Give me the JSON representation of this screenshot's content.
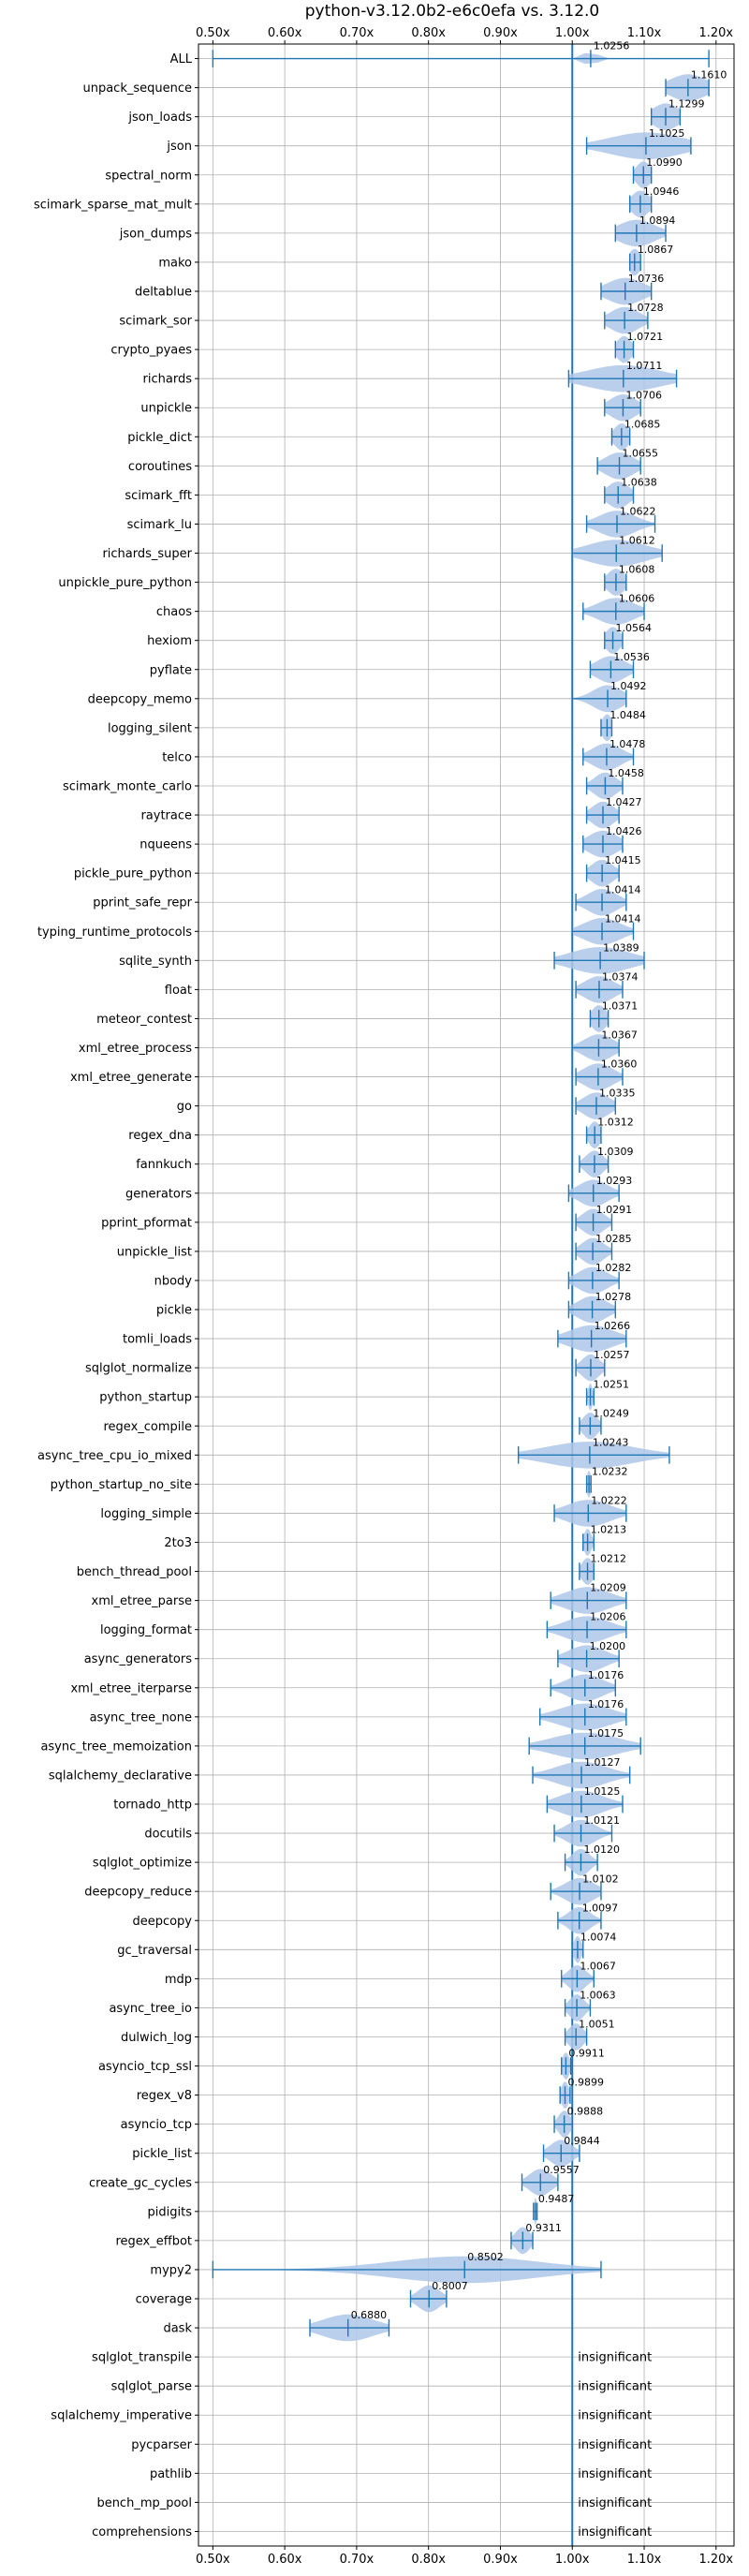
{
  "chart_data": {
    "type": "violin",
    "title": "python-v3.12.0b2-e6c0efa vs. 3.12.0",
    "x_ticks": [
      "0.50x",
      "0.60x",
      "0.70x",
      "0.80x",
      "0.90x",
      "1.00x",
      "1.10x",
      "1.20x"
    ],
    "xlim": [
      0.48,
      1.225
    ],
    "reference_line": 1.0,
    "grid": true,
    "colors": {
      "line": "#1f77b4",
      "fill": "#aec7e8"
    },
    "insignificant_label": "insignificant",
    "benchmarks": [
      {
        "name": "ALL",
        "value": 1.0256,
        "label": "1.0256",
        "low": 0.5,
        "high": 1.19,
        "spread": 0.006
      },
      {
        "name": "unpack_sequence",
        "value": 1.161,
        "label": "1.1610",
        "low": 1.13,
        "high": 1.19,
        "spread": 0.025
      },
      {
        "name": "json_loads",
        "value": 1.1299,
        "label": "1.1299",
        "low": 1.11,
        "high": 1.15,
        "spread": 0.018
      },
      {
        "name": "json",
        "value": 1.1025,
        "label": "1.1025",
        "low": 1.02,
        "high": 1.165,
        "spread": 0.05
      },
      {
        "name": "spectral_norm",
        "value": 1.099,
        "label": "1.0990",
        "low": 1.085,
        "high": 1.11,
        "spread": 0.01
      },
      {
        "name": "scimark_sparse_mat_mult",
        "value": 1.0946,
        "label": "1.0946",
        "low": 1.08,
        "high": 1.11,
        "spread": 0.012
      },
      {
        "name": "json_dumps",
        "value": 1.0894,
        "label": "1.0894",
        "low": 1.06,
        "high": 1.13,
        "spread": 0.025
      },
      {
        "name": "mako",
        "value": 1.0867,
        "label": "1.0867",
        "low": 1.08,
        "high": 1.095,
        "spread": 0.008
      },
      {
        "name": "deltablue",
        "value": 1.0736,
        "label": "1.0736",
        "low": 1.04,
        "high": 1.11,
        "spread": 0.025
      },
      {
        "name": "scimark_sor",
        "value": 1.0728,
        "label": "1.0728",
        "low": 1.045,
        "high": 1.105,
        "spread": 0.02
      },
      {
        "name": "crypto_pyaes",
        "value": 1.0721,
        "label": "1.0721",
        "low": 1.06,
        "high": 1.085,
        "spread": 0.01
      },
      {
        "name": "richards",
        "value": 1.0711,
        "label": "1.0711",
        "low": 0.995,
        "high": 1.145,
        "spread": 0.05
      },
      {
        "name": "unpickle",
        "value": 1.0706,
        "label": "1.0706",
        "low": 1.045,
        "high": 1.095,
        "spread": 0.018
      },
      {
        "name": "pickle_dict",
        "value": 1.0685,
        "label": "1.0685",
        "low": 1.055,
        "high": 1.08,
        "spread": 0.01
      },
      {
        "name": "coroutines",
        "value": 1.0655,
        "label": "1.0655",
        "low": 1.035,
        "high": 1.095,
        "spread": 0.02
      },
      {
        "name": "scimark_fft",
        "value": 1.0638,
        "label": "1.0638",
        "low": 1.045,
        "high": 1.085,
        "spread": 0.015
      },
      {
        "name": "scimark_lu",
        "value": 1.0622,
        "label": "1.0622",
        "low": 1.02,
        "high": 1.115,
        "spread": 0.025
      },
      {
        "name": "richards_super",
        "value": 1.0612,
        "label": "1.0612",
        "low": 1.0,
        "high": 1.125,
        "spread": 0.04
      },
      {
        "name": "unpickle_pure_python",
        "value": 1.0608,
        "label": "1.0608",
        "low": 1.045,
        "high": 1.075,
        "spread": 0.012
      },
      {
        "name": "chaos",
        "value": 1.0606,
        "label": "1.0606",
        "low": 1.015,
        "high": 1.1,
        "spread": 0.025
      },
      {
        "name": "hexiom",
        "value": 1.0564,
        "label": "1.0564",
        "low": 1.045,
        "high": 1.07,
        "spread": 0.01
      },
      {
        "name": "pyflate",
        "value": 1.0536,
        "label": "1.0536",
        "low": 1.025,
        "high": 1.085,
        "spread": 0.02
      },
      {
        "name": "deepcopy_memo",
        "value": 1.0492,
        "label": "1.0492",
        "low": 1.0,
        "high": 1.075,
        "spread": 0.02
      },
      {
        "name": "logging_silent",
        "value": 1.0484,
        "label": "1.0484",
        "low": 1.04,
        "high": 1.055,
        "spread": 0.007
      },
      {
        "name": "telco",
        "value": 1.0478,
        "label": "1.0478",
        "low": 1.015,
        "high": 1.085,
        "spread": 0.02
      },
      {
        "name": "scimark_monte_carlo",
        "value": 1.0458,
        "label": "1.0458",
        "low": 1.02,
        "high": 1.07,
        "spread": 0.015
      },
      {
        "name": "raytrace",
        "value": 1.0427,
        "label": "1.0427",
        "low": 1.02,
        "high": 1.065,
        "spread": 0.015
      },
      {
        "name": "nqueens",
        "value": 1.0426,
        "label": "1.0426",
        "low": 1.015,
        "high": 1.07,
        "spread": 0.02
      },
      {
        "name": "pickle_pure_python",
        "value": 1.0415,
        "label": "1.0415",
        "low": 1.02,
        "high": 1.065,
        "spread": 0.015
      },
      {
        "name": "pprint_safe_repr",
        "value": 1.0414,
        "label": "1.0414",
        "low": 1.005,
        "high": 1.075,
        "spread": 0.02
      },
      {
        "name": "typing_runtime_protocols",
        "value": 1.0414,
        "label": "1.0414",
        "low": 1.0,
        "high": 1.085,
        "spread": 0.025
      },
      {
        "name": "sqlite_synth",
        "value": 1.0389,
        "label": "1.0389",
        "low": 0.975,
        "high": 1.1,
        "spread": 0.04
      },
      {
        "name": "float",
        "value": 1.0374,
        "label": "1.0374",
        "low": 1.005,
        "high": 1.07,
        "spread": 0.02
      },
      {
        "name": "meteor_contest",
        "value": 1.0371,
        "label": "1.0371",
        "low": 1.025,
        "high": 1.05,
        "spread": 0.01
      },
      {
        "name": "xml_etree_process",
        "value": 1.0367,
        "label": "1.0367",
        "low": 1.0,
        "high": 1.065,
        "spread": 0.02
      },
      {
        "name": "xml_etree_generate",
        "value": 1.036,
        "label": "1.0360",
        "low": 1.005,
        "high": 1.07,
        "spread": 0.02
      },
      {
        "name": "go",
        "value": 1.0335,
        "label": "1.0335",
        "low": 1.005,
        "high": 1.06,
        "spread": 0.018
      },
      {
        "name": "regex_dna",
        "value": 1.0312,
        "label": "1.0312",
        "low": 1.02,
        "high": 1.04,
        "spread": 0.008
      },
      {
        "name": "fannkuch",
        "value": 1.0309,
        "label": "1.0309",
        "low": 1.01,
        "high": 1.05,
        "spread": 0.012
      },
      {
        "name": "generators",
        "value": 1.0293,
        "label": "1.0293",
        "low": 0.995,
        "high": 1.065,
        "spread": 0.02
      },
      {
        "name": "pprint_pformat",
        "value": 1.0291,
        "label": "1.0291",
        "low": 1.005,
        "high": 1.055,
        "spread": 0.015
      },
      {
        "name": "unpickle_list",
        "value": 1.0285,
        "label": "1.0285",
        "low": 1.005,
        "high": 1.055,
        "spread": 0.015
      },
      {
        "name": "nbody",
        "value": 1.0282,
        "label": "1.0282",
        "low": 0.995,
        "high": 1.065,
        "spread": 0.02
      },
      {
        "name": "pickle",
        "value": 1.0278,
        "label": "1.0278",
        "low": 0.995,
        "high": 1.06,
        "spread": 0.02
      },
      {
        "name": "tomli_loads",
        "value": 1.0266,
        "label": "1.0266",
        "low": 0.98,
        "high": 1.075,
        "spread": 0.03
      },
      {
        "name": "sqlglot_normalize",
        "value": 1.0257,
        "label": "1.0257",
        "low": 1.005,
        "high": 1.045,
        "spread": 0.012
      },
      {
        "name": "python_startup",
        "value": 1.0251,
        "label": "1.0251",
        "low": 1.02,
        "high": 1.03,
        "spread": 0.003
      },
      {
        "name": "regex_compile",
        "value": 1.0249,
        "label": "1.0249",
        "low": 1.01,
        "high": 1.04,
        "spread": 0.01
      },
      {
        "name": "async_tree_cpu_io_mixed",
        "value": 1.0243,
        "label": "1.0243",
        "low": 0.925,
        "high": 1.135,
        "spread": 0.06
      },
      {
        "name": "python_startup_no_site",
        "value": 1.0232,
        "label": "1.0232",
        "low": 1.02,
        "high": 1.026,
        "spread": 0.003
      },
      {
        "name": "logging_simple",
        "value": 1.0222,
        "label": "1.0222",
        "low": 0.975,
        "high": 1.075,
        "spread": 0.03
      },
      {
        "name": "2to3",
        "value": 1.0213,
        "label": "1.0213",
        "low": 1.015,
        "high": 1.03,
        "spread": 0.005
      },
      {
        "name": "bench_thread_pool",
        "value": 1.0212,
        "label": "1.0212",
        "low": 1.01,
        "high": 1.03,
        "spread": 0.008
      },
      {
        "name": "xml_etree_parse",
        "value": 1.0209,
        "label": "1.0209",
        "low": 0.97,
        "high": 1.075,
        "spread": 0.03
      },
      {
        "name": "logging_format",
        "value": 1.0206,
        "label": "1.0206",
        "low": 0.965,
        "high": 1.075,
        "spread": 0.03
      },
      {
        "name": "async_generators",
        "value": 1.02,
        "label": "1.0200",
        "low": 0.98,
        "high": 1.065,
        "spread": 0.025
      },
      {
        "name": "xml_etree_iterparse",
        "value": 1.0176,
        "label": "1.0176",
        "low": 0.97,
        "high": 1.06,
        "spread": 0.025
      },
      {
        "name": "async_tree_none",
        "value": 1.0176,
        "label": "1.0176",
        "low": 0.955,
        "high": 1.075,
        "spread": 0.035
      },
      {
        "name": "async_tree_memoization",
        "value": 1.0175,
        "label": "1.0175",
        "low": 0.94,
        "high": 1.095,
        "spread": 0.045
      },
      {
        "name": "sqlalchemy_declarative",
        "value": 1.0127,
        "label": "1.0127",
        "low": 0.945,
        "high": 1.08,
        "spread": 0.035
      },
      {
        "name": "tornado_http",
        "value": 1.0125,
        "label": "1.0125",
        "low": 0.965,
        "high": 1.07,
        "spread": 0.03
      },
      {
        "name": "docutils",
        "value": 1.0121,
        "label": "1.0121",
        "low": 0.975,
        "high": 1.055,
        "spread": 0.02
      },
      {
        "name": "sqlglot_optimize",
        "value": 1.012,
        "label": "1.0120",
        "low": 0.99,
        "high": 1.035,
        "spread": 0.012
      },
      {
        "name": "deepcopy_reduce",
        "value": 1.0102,
        "label": "1.0102",
        "low": 0.97,
        "high": 1.04,
        "spread": 0.02
      },
      {
        "name": "deepcopy",
        "value": 1.0097,
        "label": "1.0097",
        "low": 0.98,
        "high": 1.04,
        "spread": 0.015
      },
      {
        "name": "gc_traversal",
        "value": 1.0074,
        "label": "1.0074",
        "low": 1.0,
        "high": 1.015,
        "spread": 0.005
      },
      {
        "name": "mdp",
        "value": 1.0067,
        "label": "1.0067",
        "low": 0.985,
        "high": 1.03,
        "spread": 0.012
      },
      {
        "name": "async_tree_io",
        "value": 1.0063,
        "label": "1.0063",
        "low": 0.99,
        "high": 1.025,
        "spread": 0.01
      },
      {
        "name": "dulwich_log",
        "value": 1.0051,
        "label": "1.0051",
        "low": 0.99,
        "high": 1.02,
        "spread": 0.01
      },
      {
        "name": "asyncio_tcp_ssl",
        "value": 0.9911,
        "label": "0.9911",
        "low": 0.985,
        "high": 0.998,
        "spread": 0.005
      },
      {
        "name": "regex_v8",
        "value": 0.9899,
        "label": "0.9899",
        "low": 0.983,
        "high": 0.997,
        "spread": 0.005
      },
      {
        "name": "asyncio_tcp",
        "value": 0.9888,
        "label": "0.9888",
        "low": 0.975,
        "high": 1.0,
        "spread": 0.008
      },
      {
        "name": "pickle_list",
        "value": 0.9844,
        "label": "0.9844",
        "low": 0.96,
        "high": 1.01,
        "spread": 0.015
      },
      {
        "name": "create_gc_cycles",
        "value": 0.9557,
        "label": "0.9557",
        "low": 0.93,
        "high": 0.98,
        "spread": 0.015
      },
      {
        "name": "pidigits",
        "value": 0.9487,
        "label": "0.9487",
        "low": 0.946,
        "high": 0.951,
        "spread": 0.002
      },
      {
        "name": "regex_effbot",
        "value": 0.9311,
        "label": "0.9311",
        "low": 0.915,
        "high": 0.945,
        "spread": 0.01
      },
      {
        "name": "mypy2",
        "value": 0.8502,
        "label": "0.8502",
        "low": 0.5,
        "high": 1.04,
        "spread": 0.1
      },
      {
        "name": "coverage",
        "value": 0.8007,
        "label": "0.8007",
        "low": 0.775,
        "high": 0.825,
        "spread": 0.015
      },
      {
        "name": "dask",
        "value": 0.688,
        "label": "0.6880",
        "low": 0.635,
        "high": 0.745,
        "spread": 0.035
      },
      {
        "name": "sqlglot_transpile",
        "value": null,
        "label": "insignificant"
      },
      {
        "name": "sqlglot_parse",
        "value": null,
        "label": "insignificant"
      },
      {
        "name": "sqlalchemy_imperative",
        "value": null,
        "label": "insignificant"
      },
      {
        "name": "pycparser",
        "value": null,
        "label": "insignificant"
      },
      {
        "name": "pathlib",
        "value": null,
        "label": "insignificant"
      },
      {
        "name": "bench_mp_pool",
        "value": null,
        "label": "insignificant"
      },
      {
        "name": "comprehensions",
        "value": null,
        "label": "insignificant"
      }
    ]
  }
}
